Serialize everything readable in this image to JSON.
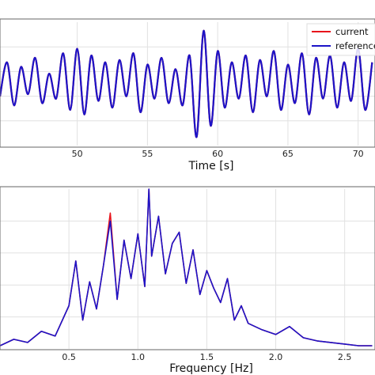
{
  "colors": {
    "current": "#e8141c",
    "reference": "#1c14c8"
  },
  "chart_data": [
    {
      "type": "line",
      "xlabel": "Time [s]",
      "ylabel": "",
      "xlim": [
        44.5,
        71.2
      ],
      "xticks": [
        50,
        55,
        60,
        65,
        70
      ],
      "xtick_labels": [
        "50",
        "55",
        "60",
        "65",
        "70"
      ],
      "grid": true,
      "legend_position": "top-right",
      "series": [
        {
          "name": "current",
          "x": [
            44.5,
            45.0,
            45.5,
            46.0,
            46.5,
            47.0,
            47.5,
            48.0,
            48.5,
            49.0,
            49.5,
            50.0,
            50.5,
            51.0,
            51.5,
            52.0,
            52.5,
            53.0,
            53.5,
            54.0,
            54.5,
            55.0,
            55.5,
            56.0,
            56.5,
            57.0,
            57.5,
            58.0,
            58.5,
            59.0,
            59.5,
            60.0,
            60.5,
            61.0,
            61.5,
            62.0,
            62.5,
            63.0,
            63.5,
            64.0,
            64.5,
            65.0,
            65.5,
            66.0,
            66.5,
            67.0,
            67.5,
            68.0,
            68.5,
            69.0,
            69.5,
            70.0,
            70.5,
            71.0
          ],
          "y": [
            -0.6,
            0.9,
            -1.0,
            0.7,
            -0.5,
            1.1,
            -0.9,
            0.4,
            -0.7,
            1.3,
            -1.2,
            1.5,
            -1.4,
            1.2,
            -0.8,
            0.9,
            -1.1,
            1.0,
            -0.6,
            1.3,
            -1.3,
            0.8,
            -0.7,
            1.1,
            -0.9,
            0.6,
            -1.0,
            1.2,
            -2.4,
            2.3,
            -1.9,
            1.4,
            -1.1,
            0.9,
            -0.7,
            1.2,
            -1.3,
            1.0,
            -0.6,
            1.4,
            -1.2,
            0.8,
            -0.9,
            1.3,
            -1.4,
            1.1,
            -0.7,
            1.2,
            -1.1,
            0.9,
            -0.8,
            1.5,
            -1.2,
            0.9
          ]
        },
        {
          "name": "reference",
          "x": [
            44.5,
            45.0,
            45.5,
            46.0,
            46.5,
            47.0,
            47.5,
            48.0,
            48.5,
            49.0,
            49.5,
            50.0,
            50.5,
            51.0,
            51.5,
            52.0,
            52.5,
            53.0,
            53.5,
            54.0,
            54.5,
            55.0,
            55.5,
            56.0,
            56.5,
            57.0,
            57.5,
            58.0,
            58.5,
            59.0,
            59.5,
            60.0,
            60.5,
            61.0,
            61.5,
            62.0,
            62.5,
            63.0,
            63.5,
            64.0,
            64.5,
            65.0,
            65.5,
            66.0,
            66.5,
            67.0,
            67.5,
            68.0,
            68.5,
            69.0,
            69.5,
            70.0,
            70.5,
            71.0
          ],
          "y": [
            -0.6,
            0.9,
            -1.0,
            0.7,
            -0.5,
            1.1,
            -0.9,
            0.4,
            -0.7,
            1.3,
            -1.2,
            1.5,
            -1.4,
            1.2,
            -0.8,
            0.9,
            -1.1,
            1.0,
            -0.6,
            1.3,
            -1.3,
            0.8,
            -0.7,
            1.1,
            -0.9,
            0.6,
            -1.0,
            1.2,
            -2.4,
            2.3,
            -1.9,
            1.4,
            -1.1,
            0.9,
            -0.7,
            1.2,
            -1.3,
            1.0,
            -0.6,
            1.4,
            -1.2,
            0.8,
            -0.9,
            1.3,
            -1.4,
            1.1,
            -0.7,
            1.2,
            -1.1,
            0.9,
            -0.8,
            1.5,
            -1.2,
            0.9
          ]
        }
      ]
    },
    {
      "type": "line",
      "xlabel": "Frequency [Hz]",
      "ylabel": "",
      "xlim": [
        0.0,
        2.72
      ],
      "ylim": [
        0,
        1.0
      ],
      "xticks": [
        0.5,
        1.0,
        1.5,
        2.0,
        2.5
      ],
      "xtick_labels": [
        "0.5",
        "1.0",
        "1.5",
        "2.0",
        "2.5"
      ],
      "grid": true,
      "series": [
        {
          "name": "current",
          "x": [
            0.0,
            0.1,
            0.2,
            0.3,
            0.4,
            0.5,
            0.55,
            0.6,
            0.65,
            0.7,
            0.75,
            0.8,
            0.85,
            0.9,
            0.95,
            1.0,
            1.05,
            1.08,
            1.1,
            1.15,
            1.2,
            1.25,
            1.3,
            1.35,
            1.4,
            1.45,
            1.5,
            1.55,
            1.6,
            1.65,
            1.7,
            1.75,
            1.8,
            1.9,
            2.0,
            2.1,
            2.2,
            2.3,
            2.4,
            2.5,
            2.6,
            2.7
          ],
          "y": [
            0.02,
            0.06,
            0.04,
            0.11,
            0.08,
            0.27,
            0.55,
            0.18,
            0.42,
            0.25,
            0.52,
            0.85,
            0.31,
            0.68,
            0.44,
            0.72,
            0.39,
            1.0,
            0.58,
            0.83,
            0.47,
            0.66,
            0.73,
            0.41,
            0.62,
            0.34,
            0.49,
            0.38,
            0.29,
            0.44,
            0.18,
            0.27,
            0.16,
            0.12,
            0.09,
            0.14,
            0.07,
            0.05,
            0.04,
            0.03,
            0.02,
            0.02
          ]
        },
        {
          "name": "reference",
          "x": [
            0.0,
            0.1,
            0.2,
            0.3,
            0.4,
            0.5,
            0.55,
            0.6,
            0.65,
            0.7,
            0.75,
            0.8,
            0.85,
            0.9,
            0.95,
            1.0,
            1.05,
            1.08,
            1.1,
            1.15,
            1.2,
            1.25,
            1.3,
            1.35,
            1.4,
            1.45,
            1.5,
            1.55,
            1.6,
            1.65,
            1.7,
            1.75,
            1.8,
            1.9,
            2.0,
            2.1,
            2.2,
            2.3,
            2.4,
            2.5,
            2.6,
            2.7
          ],
          "y": [
            0.02,
            0.06,
            0.04,
            0.11,
            0.08,
            0.27,
            0.55,
            0.18,
            0.42,
            0.25,
            0.52,
            0.8,
            0.31,
            0.68,
            0.44,
            0.72,
            0.39,
            1.0,
            0.58,
            0.83,
            0.47,
            0.66,
            0.73,
            0.41,
            0.62,
            0.34,
            0.49,
            0.38,
            0.29,
            0.44,
            0.18,
            0.27,
            0.16,
            0.12,
            0.09,
            0.14,
            0.07,
            0.05,
            0.04,
            0.03,
            0.02,
            0.02
          ]
        }
      ]
    }
  ]
}
